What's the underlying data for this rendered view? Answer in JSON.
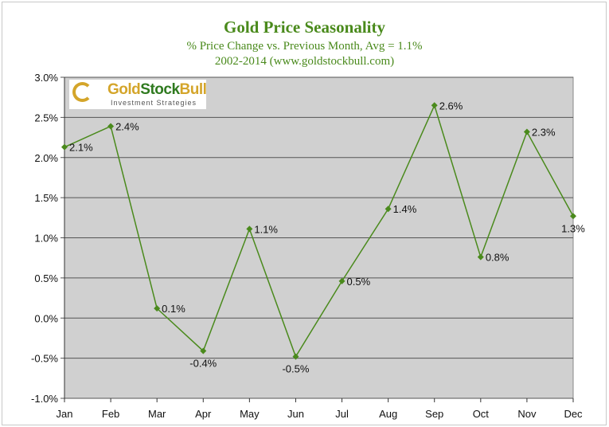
{
  "chart_data": {
    "type": "line",
    "title": "Gold Price Seasonality",
    "subtitle": "% Price Change vs. Previous Month, Avg = 1.1%",
    "subtitle2": "2002-2014 (www.goldstockbull.com)",
    "categories": [
      "Jan",
      "Feb",
      "Mar",
      "Apr",
      "May",
      "Jun",
      "Jul",
      "Aug",
      "Sep",
      "Oct",
      "Nov",
      "Dec"
    ],
    "values": [
      2.13,
      2.39,
      0.12,
      -0.41,
      1.11,
      -0.48,
      0.46,
      1.36,
      2.65,
      0.76,
      2.32,
      1.27
    ],
    "data_labels": [
      "2.1%",
      "2.4%",
      "0.1%",
      "-0.4%",
      "1.1%",
      "-0.5%",
      "0.5%",
      "1.4%",
      "2.6%",
      "0.8%",
      "2.3%",
      "1.3%"
    ],
    "ylim": [
      -1.0,
      3.0
    ],
    "yticks": [
      "-1.0%",
      "-0.5%",
      "0.0%",
      "0.5%",
      "1.0%",
      "1.5%",
      "2.0%",
      "2.5%",
      "3.0%"
    ],
    "xlabel": "",
    "ylabel": "",
    "grid": true,
    "line_color": "#4a8a1c",
    "plot_background": "#d0d0d0"
  },
  "logo": {
    "name_gold": "Gold",
    "name_stock": "Stock",
    "name_bull": "Bull",
    "tagline": "Investment Strategies"
  }
}
